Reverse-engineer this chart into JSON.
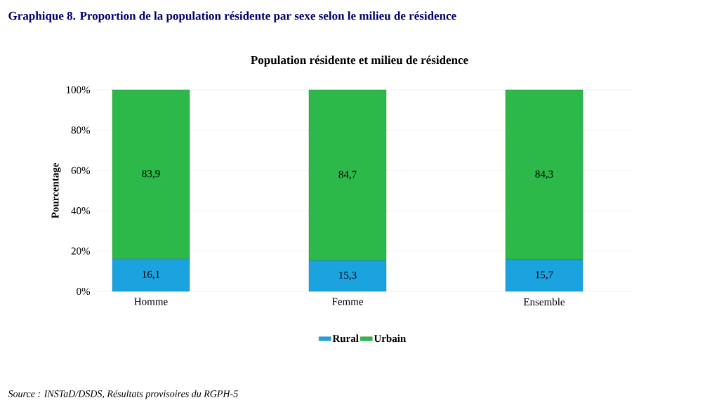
{
  "chart_data": {
    "type": "bar",
    "stacked": true,
    "title": "Graphique 8. Proportion de la population résidente par sexe selon le milieu de résidence",
    "subtitle": "Population résidente et milieu de résidence",
    "ylabel": "Pourcentage",
    "categories": [
      "Homme",
      "Femme",
      "Ensemble"
    ],
    "series": [
      {
        "name": "Rural",
        "color": "#1ba3df",
        "values": [
          16.1,
          15.3,
          15.7
        ],
        "value_labels": [
          "16,1",
          "15,3",
          "15,7"
        ]
      },
      {
        "name": "Urbain",
        "color": "#2db84a",
        "values": [
          83.9,
          84.7,
          84.3
        ],
        "value_labels": [
          "83,9",
          "84,7",
          "84,3"
        ]
      }
    ],
    "ylim": [
      0,
      100
    ],
    "yticks": [
      {
        "value": 0,
        "label": "0%"
      },
      {
        "value": 20,
        "label": "20%"
      },
      {
        "value": 40,
        "label": "40%"
      },
      {
        "value": 60,
        "label": "60%"
      },
      {
        "value": 80,
        "label": "80%"
      },
      {
        "value": 100,
        "label": "100%"
      }
    ],
    "grid": "y",
    "legend": "bottom",
    "annotations": [
      "Source : INSTaD/DSDS, Résultats provisoires du RGPH-5"
    ]
  }
}
